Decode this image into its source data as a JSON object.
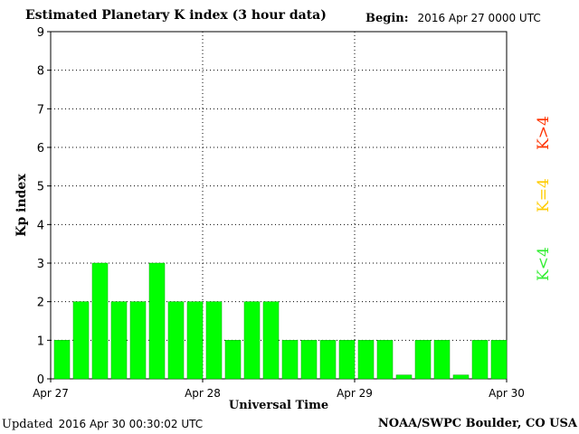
{
  "header": {
    "title": "Estimated Planetary K index (3 hour data)",
    "begin_label": "Begin:",
    "begin_value": "2016 Apr 27 0000 UTC"
  },
  "footer": {
    "updated_label": "Updated",
    "updated_value": "2016 Apr 30 00:30:02 UTC",
    "source": "NOAA/SWPC Boulder, CO USA"
  },
  "legend": [
    {
      "label": "K>4",
      "color": "#ff3300"
    },
    {
      "label": "K=4",
      "color": "#ffcc00"
    },
    {
      "label": "K<4",
      "color": "#33ee33"
    }
  ],
  "colors": {
    "bar": "#00ff00",
    "bar_stroke": "#00aa00"
  },
  "chart_data": {
    "type": "bar",
    "title": "Estimated Planetary K index (3 hour data)",
    "xlabel": "Universal Time",
    "ylabel": "Kp index",
    "ylim": [
      0,
      9
    ],
    "y_ticks": [
      "0",
      "1",
      "2",
      "3",
      "4",
      "5",
      "6",
      "7",
      "8",
      "9"
    ],
    "x_ticks": [
      "Apr 27",
      "Apr 28",
      "Apr 29",
      "Apr 30"
    ],
    "grid": true,
    "values": [
      1,
      2,
      3,
      2,
      2,
      3,
      2,
      2,
      2,
      1,
      2,
      2,
      1,
      1,
      1,
      1,
      1,
      1,
      0.1,
      1,
      1,
      0.1,
      1,
      1
    ]
  }
}
